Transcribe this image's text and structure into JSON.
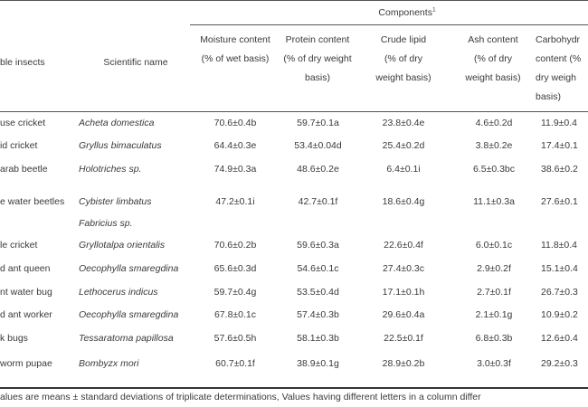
{
  "header": {
    "components_label": "Components",
    "components_sup": "1",
    "insects_label": "ble insects",
    "scientific_label": "Scientific name",
    "cols": [
      [
        "Moisture content",
        "(% of wet basis)"
      ],
      [
        "Protein content",
        "(% of dry weight",
        "basis)"
      ],
      [
        "Crude lipid",
        "(% of dry",
        "weight basis)"
      ],
      [
        "Ash content",
        "(% of dry",
        "weight basis)"
      ],
      [
        "Carbohydr",
        "content (%",
        "dry weigh",
        "basis)"
      ]
    ]
  },
  "rows": [
    {
      "insect": "use cricket",
      "sci": [
        "Acheta domestica"
      ],
      "vals": [
        "70.6±0.4b",
        "59.7±0.1a",
        "23.8±0.4e",
        "4.6±0.2d",
        "11.9±0.4"
      ]
    },
    {
      "insect": "id cricket",
      "sci": [
        "Gryllus bimaculatus"
      ],
      "vals": [
        "64.4±0.3e",
        "53.4±0.04d",
        "25.4±0.2d",
        "3.8±0.2e",
        "17.4±0.1"
      ]
    },
    {
      "insect": "arab beetle",
      "sci": [
        "Holotriches sp."
      ],
      "vals": [
        "74.9±0.3a",
        "48.6±0.2e",
        "6.4±0.1i",
        "6.5±0.3bc",
        "38.6±0.2"
      ]
    },
    {
      "insect": "e water beetles",
      "sci": [
        "Cybister limbatus",
        "Fabricius sp."
      ],
      "vals": [
        "47.2±0.1i",
        "42.7±0.1f",
        "18.6±0.4g",
        "11.1±0.3a",
        "27.6±0.1"
      ]
    },
    {
      "insect": "le cricket",
      "sci": [
        "Gryllotalpa orientalis"
      ],
      "vals": [
        "70.6±0.2b",
        "59.6±0.3a",
        "22.6±0.4f",
        "6.0±0.1c",
        "11.8±0.4"
      ]
    },
    {
      "insect": "d ant queen",
      "sci": [
        "Oecophylla smaregdina"
      ],
      "vals": [
        "65.6±0.3d",
        "54.6±0.1c",
        "27.4±0.3c",
        "2.9±0.2f",
        "15.1±0.4"
      ]
    },
    {
      "insect": "nt water bug",
      "sci": [
        "Lethocerus indicus"
      ],
      "vals": [
        "59.7±0.4g",
        "53.5±0.4d",
        "17.1±0.1h",
        "2.7±0.1f",
        "26.7±0.3"
      ]
    },
    {
      "insect": "d ant worker",
      "sci": [
        "Oecophylla smaregdina"
      ],
      "vals": [
        "67.8±0.1c",
        "57.4±0.3b",
        "29.6±0.4a",
        "2.1±0.1g",
        "10.9±0.2"
      ]
    },
    {
      "insect": "k bugs",
      "sci": [
        "Tessaratoma papillosa"
      ],
      "vals": [
        "57.6±0.5h",
        "58.1±0.3b",
        "22.5±0.1f",
        "6.8±0.3b",
        "12.6±0.4"
      ]
    },
    {
      "insect": "worm pupae",
      "sci": [
        "Bombyzx mori"
      ],
      "vals": [
        "60.7±0.1f",
        "38.9±0.1g",
        "28.9±0.2b",
        "3.0±0.3f",
        "29.2±0.3"
      ]
    }
  ],
  "footnote": "alues are means ± standard deviations of triplicate determinations, Values having different letters in a column differ"
}
